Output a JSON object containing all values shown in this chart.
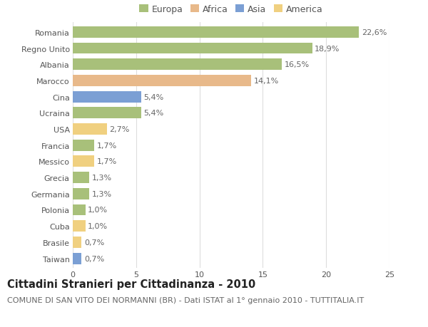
{
  "categories": [
    "Romania",
    "Regno Unito",
    "Albania",
    "Marocco",
    "Cina",
    "Ucraina",
    "USA",
    "Francia",
    "Messico",
    "Grecia",
    "Germania",
    "Polonia",
    "Cuba",
    "Brasile",
    "Taiwan"
  ],
  "values": [
    22.6,
    18.9,
    16.5,
    14.1,
    5.4,
    5.4,
    2.7,
    1.7,
    1.7,
    1.3,
    1.3,
    1.0,
    1.0,
    0.7,
    0.7
  ],
  "labels": [
    "22,6%",
    "18,9%",
    "16,5%",
    "14,1%",
    "5,4%",
    "5,4%",
    "2,7%",
    "1,7%",
    "1,7%",
    "1,3%",
    "1,3%",
    "1,0%",
    "1,0%",
    "0,7%",
    "0,7%"
  ],
  "colors": [
    "#a8c07a",
    "#a8c07a",
    "#a8c07a",
    "#e8b98a",
    "#7b9fd4",
    "#a8c07a",
    "#f0d080",
    "#a8c07a",
    "#f0d080",
    "#a8c07a",
    "#a8c07a",
    "#a8c07a",
    "#f0d080",
    "#f0d080",
    "#7b9fd4"
  ],
  "legend_labels": [
    "Europa",
    "Africa",
    "Asia",
    "America"
  ],
  "legend_colors": [
    "#a8c07a",
    "#e8b98a",
    "#7b9fd4",
    "#f0d080"
  ],
  "title": "Cittadini Stranieri per Cittadinanza - 2010",
  "subtitle": "COMUNE DI SAN VITO DEI NORMANNI (BR) - Dati ISTAT al 1° gennaio 2010 - TUTTITALIA.IT",
  "xlim": [
    0,
    25
  ],
  "xticks": [
    0,
    5,
    10,
    15,
    20,
    25
  ],
  "background_color": "#ffffff",
  "grid_color": "#dddddd",
  "bar_height": 0.7,
  "title_fontsize": 10.5,
  "subtitle_fontsize": 8,
  "label_fontsize": 8,
  "tick_fontsize": 8,
  "legend_fontsize": 9
}
